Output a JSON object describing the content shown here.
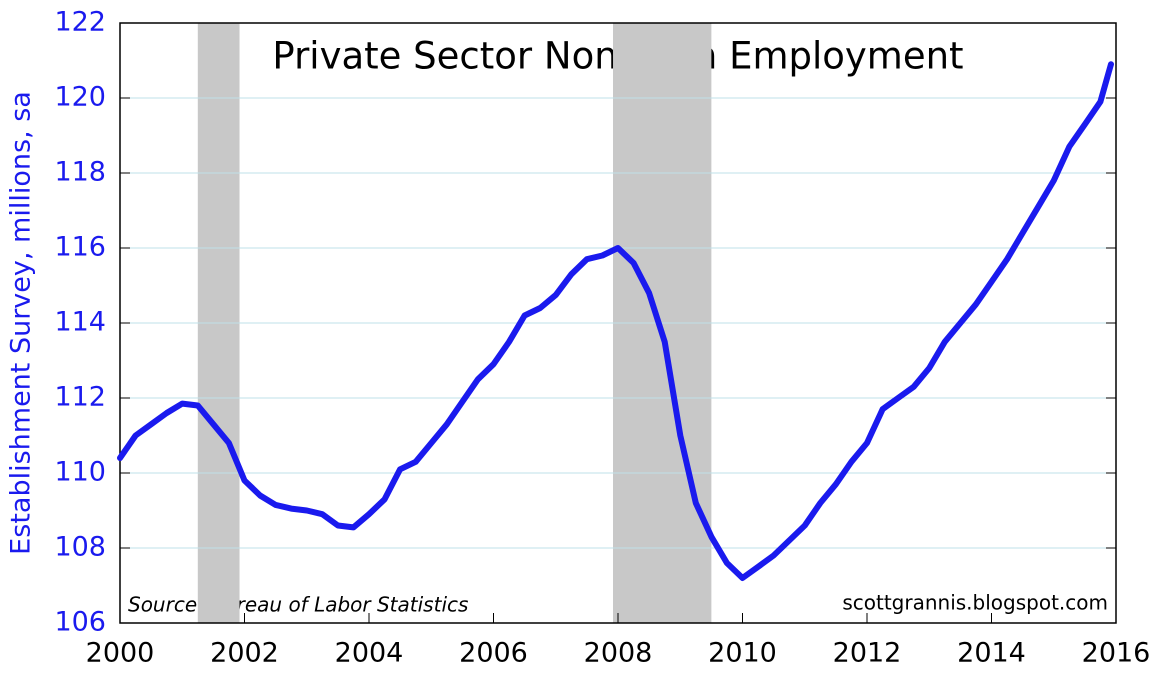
{
  "chart_data": {
    "type": "line",
    "title": "Private Sector Non-farm Employment",
    "y_label": "Establishment Survey, millions, sa",
    "source": "Source:  Bureau of Labor Statistics",
    "watermark": "scottgrannis.blogspot.com",
    "color": "#1a1aee",
    "shaded_periods": [
      [
        2001.25,
        2001.92
      ],
      [
        2007.92,
        2009.5
      ]
    ],
    "shade_color": "#c8c8c8",
    "grid": true,
    "xlim": [
      2000,
      2016
    ],
    "xticks": [
      2000,
      2002,
      2004,
      2006,
      2008,
      2010,
      2012,
      2014,
      2016
    ],
    "ylim": [
      106,
      122
    ],
    "yticks": [
      106,
      108,
      110,
      112,
      114,
      116,
      118,
      120,
      122
    ],
    "x": [
      2000,
      2000.25,
      2000.5,
      2000.75,
      2001,
      2001.25,
      2001.5,
      2001.75,
      2002,
      2002.25,
      2002.5,
      2002.75,
      2003,
      2003.25,
      2003.5,
      2003.75,
      2004,
      2004.25,
      2004.5,
      2004.75,
      2005,
      2005.25,
      2005.5,
      2005.75,
      2006,
      2006.25,
      2006.5,
      2006.75,
      2007,
      2007.25,
      2007.5,
      2007.75,
      2008,
      2008.25,
      2008.5,
      2008.75,
      2009,
      2009.25,
      2009.5,
      2009.75,
      2010,
      2010.25,
      2010.5,
      2010.75,
      2011,
      2011.25,
      2011.5,
      2011.75,
      2012,
      2012.25,
      2012.5,
      2012.75,
      2013,
      2013.25,
      2013.5,
      2013.75,
      2014,
      2014.25,
      2014.5,
      2014.75,
      2015,
      2015.25,
      2015.5,
      2015.75,
      2015.92
    ],
    "values": [
      110.4,
      111.0,
      111.3,
      111.6,
      111.85,
      111.8,
      111.3,
      110.8,
      109.8,
      109.4,
      109.15,
      109.05,
      109.0,
      108.9,
      108.6,
      108.55,
      108.9,
      109.3,
      110.1,
      110.3,
      110.8,
      111.3,
      111.9,
      112.5,
      112.9,
      113.5,
      114.2,
      114.4,
      114.75,
      115.3,
      115.7,
      115.8,
      116.0,
      115.6,
      114.8,
      113.5,
      111.0,
      109.2,
      108.3,
      107.6,
      107.2,
      107.5,
      107.8,
      108.2,
      108.6,
      109.2,
      109.7,
      110.3,
      110.8,
      111.7,
      112.0,
      112.3,
      112.8,
      113.5,
      114.0,
      114.5,
      115.1,
      115.7,
      116.4,
      117.1,
      117.8,
      118.7,
      119.3,
      119.9,
      120.9
    ]
  }
}
